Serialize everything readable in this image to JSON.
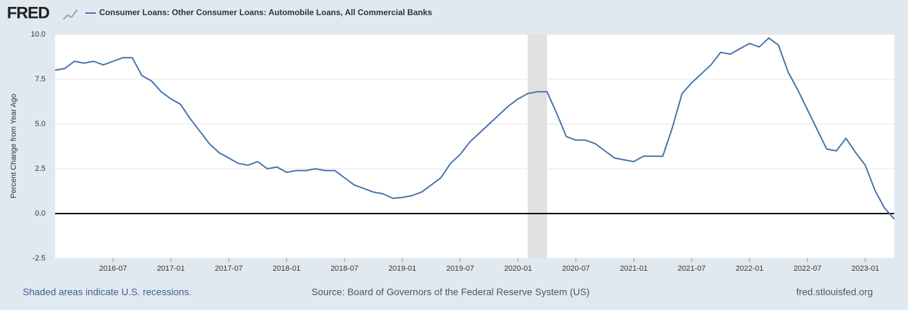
{
  "chart_data": {
    "type": "line",
    "logo": "FRED",
    "y_label": "Percent Change from Year Ago",
    "note": "Shaded areas indicate U.S. recessions.",
    "source": "Source: Board of Governors of the Federal Reserve System (US)",
    "url": "fred.stlouisfed.org",
    "x": [
      "2016-01",
      "2016-02",
      "2016-03",
      "2016-04",
      "2016-05",
      "2016-06",
      "2016-07",
      "2016-08",
      "2016-09",
      "2016-10",
      "2016-11",
      "2016-12",
      "2017-01",
      "2017-02",
      "2017-03",
      "2017-04",
      "2017-05",
      "2017-06",
      "2017-07",
      "2017-08",
      "2017-09",
      "2017-10",
      "2017-11",
      "2017-12",
      "2018-01",
      "2018-02",
      "2018-03",
      "2018-04",
      "2018-05",
      "2018-06",
      "2018-07",
      "2018-08",
      "2018-09",
      "2018-10",
      "2018-11",
      "2018-12",
      "2019-01",
      "2019-02",
      "2019-03",
      "2019-04",
      "2019-05",
      "2019-06",
      "2019-07",
      "2019-08",
      "2019-09",
      "2019-10",
      "2019-11",
      "2019-12",
      "2020-01",
      "2020-02",
      "2020-03",
      "2020-04",
      "2020-05",
      "2020-06",
      "2020-07",
      "2020-08",
      "2020-09",
      "2020-10",
      "2020-11",
      "2020-12",
      "2021-01",
      "2021-02",
      "2021-03",
      "2021-04",
      "2021-05",
      "2021-06",
      "2021-07",
      "2021-08",
      "2021-09",
      "2021-10",
      "2021-11",
      "2021-12",
      "2022-01",
      "2022-02",
      "2022-03",
      "2022-04",
      "2022-05",
      "2022-06",
      "2022-07",
      "2022-08",
      "2022-09",
      "2022-10",
      "2022-11",
      "2022-12",
      "2023-01",
      "2023-02",
      "2023-03",
      "2023-04"
    ],
    "series": [
      {
        "name": "Consumer Loans: Other Consumer Loans: Automobile Loans, All Commercial Banks",
        "color": "#4572a7",
        "values": [
          8.0,
          8.1,
          8.5,
          8.4,
          8.5,
          8.3,
          8.5,
          8.7,
          8.7,
          7.7,
          7.4,
          6.8,
          6.4,
          6.1,
          5.3,
          4.6,
          3.9,
          3.4,
          3.1,
          2.8,
          2.7,
          2.9,
          2.5,
          2.6,
          2.3,
          2.4,
          2.4,
          2.5,
          2.4,
          2.4,
          2.0,
          1.6,
          1.4,
          1.2,
          1.1,
          0.85,
          0.9,
          1.0,
          1.2,
          1.6,
          2.0,
          2.8,
          3.3,
          4.0,
          4.5,
          5.0,
          5.5,
          6.0,
          6.4,
          6.7,
          6.8,
          6.8,
          5.6,
          4.3,
          4.1,
          4.1,
          3.9,
          3.5,
          3.1,
          3.0,
          2.9,
          3.2,
          3.2,
          3.2,
          4.8,
          6.7,
          7.3,
          7.8,
          8.3,
          9.0,
          8.9,
          9.2,
          9.5,
          9.3,
          9.8,
          9.4,
          7.9,
          6.9,
          5.8,
          4.7,
          3.6,
          3.5,
          4.2,
          3.4,
          2.7,
          1.3,
          0.3,
          -0.3
        ]
      }
    ],
    "xlim": [
      "2016-01",
      "2023-04"
    ],
    "xticks": [
      "2016-07",
      "2017-01",
      "2017-07",
      "2018-01",
      "2018-07",
      "2019-01",
      "2019-07",
      "2020-01",
      "2020-07",
      "2021-01",
      "2021-07",
      "2022-01",
      "2022-07",
      "2023-01"
    ],
    "ylim": [
      -2.5,
      10
    ],
    "yticks": [
      {
        "value": -2.5,
        "label": "-2.5"
      },
      {
        "value": 0,
        "label": "0.0"
      },
      {
        "value": 2.5,
        "label": "2.5"
      },
      {
        "value": 5,
        "label": "5.0"
      },
      {
        "value": 7.5,
        "label": "7.5"
      },
      {
        "value": 10,
        "label": "10.0"
      }
    ],
    "grid": true,
    "recessions": [
      {
        "start": "2020-02",
        "end": "2020-04"
      }
    ]
  }
}
